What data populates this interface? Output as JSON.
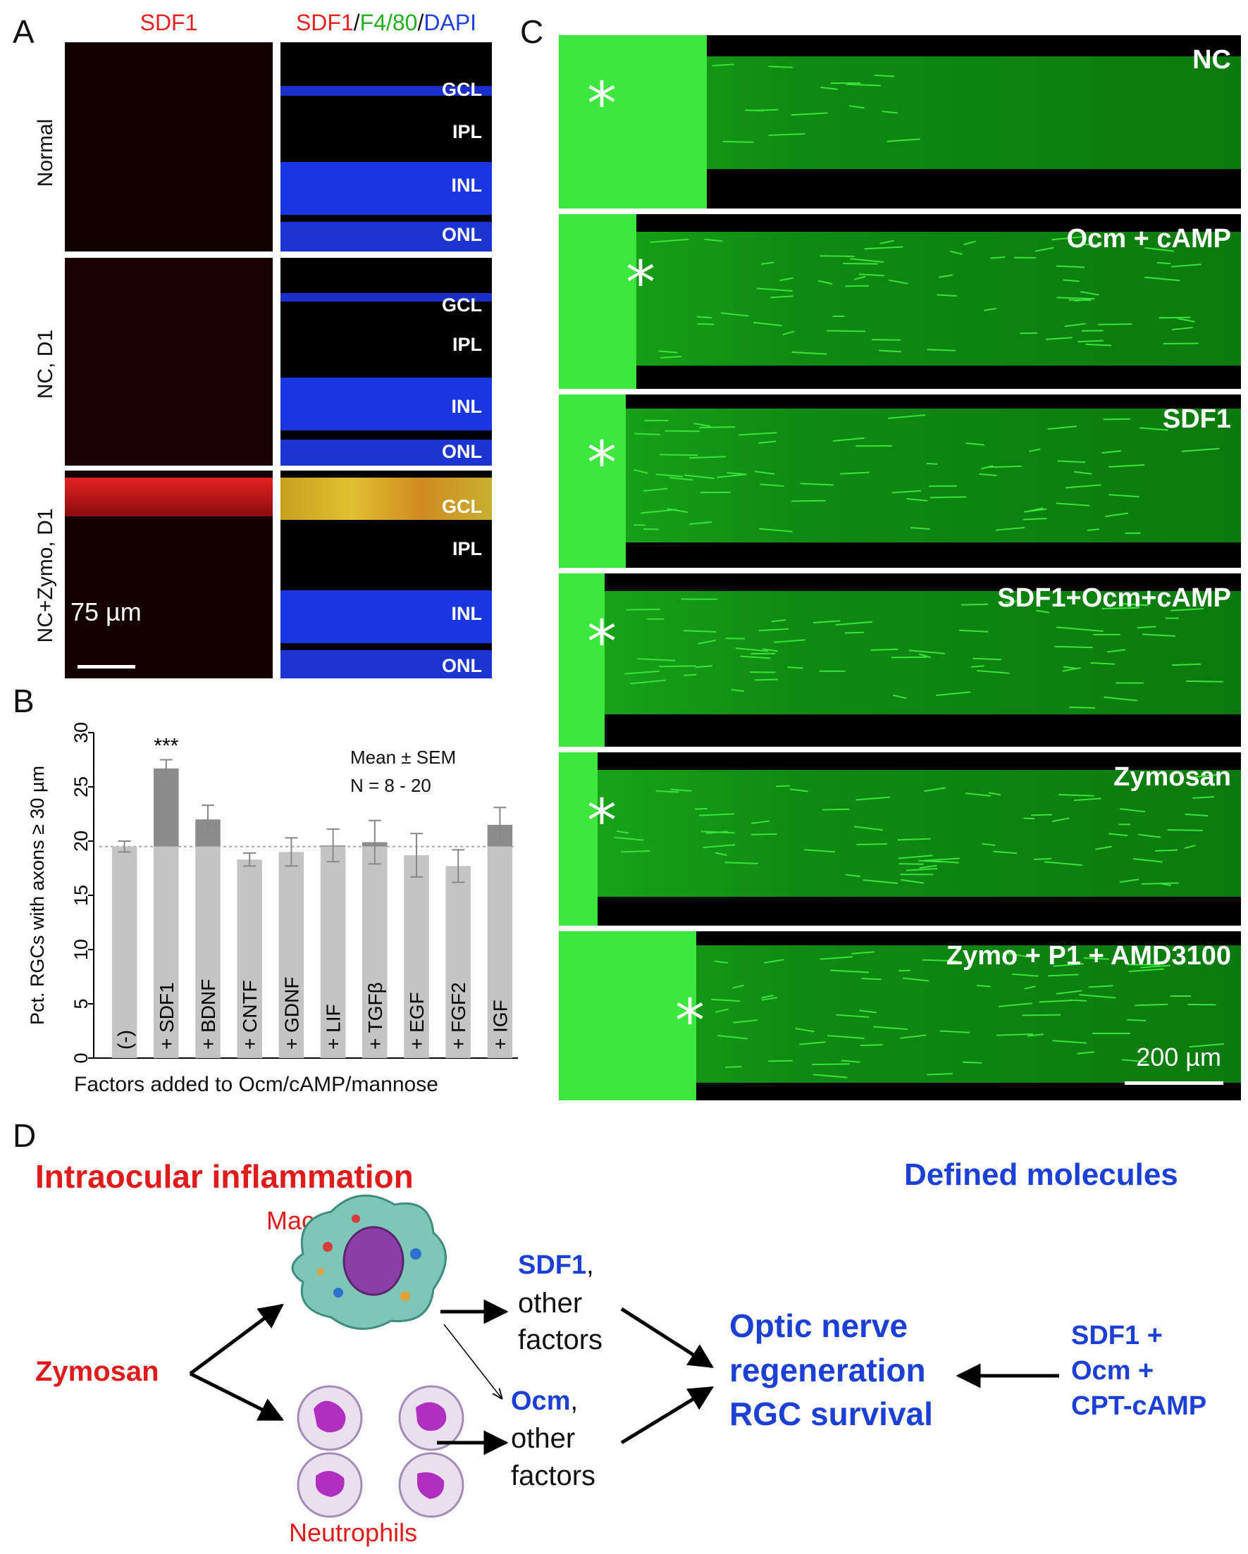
{
  "panel_labels": {
    "a": "A",
    "b": "B",
    "c": "C",
    "d": "D"
  },
  "panel_a": {
    "col1_title": "SDF1",
    "col2_title": {
      "sdf1": "SDF1",
      "sep1": "/",
      "f480": "F4/80",
      "sep2": "/",
      "dapi": "DAPI"
    },
    "rows": [
      "Normal",
      "NC, D1",
      "NC+Zymo, D1"
    ],
    "layers": {
      "gcl": "GCL",
      "ipl": "IPL",
      "inl": "INL",
      "onl": "ONL"
    },
    "scale_bar": "75 µm",
    "colors": {
      "sdf1": "#e52222",
      "f480": "#22b022",
      "dapi": "#1f3fe0"
    }
  },
  "panel_b": {
    "legend_line1": "Mean ± SEM",
    "legend_line2": "N = 8 - 20",
    "significance": "***"
  },
  "chart_data": {
    "type": "bar",
    "categories": [
      "(-)",
      "+ SDF1",
      "+ BDNF",
      "+ CNTF",
      "+ GDNF",
      "+ LIF",
      "+ TGFβ",
      "+ EGF",
      "+ FGF2",
      "+ IGF"
    ],
    "values": [
      19.5,
      26.7,
      22.0,
      18.3,
      19.0,
      19.6,
      19.9,
      18.7,
      17.7,
      21.5
    ],
    "errors": [
      0.5,
      0.8,
      1.3,
      0.6,
      1.3,
      1.5,
      2.0,
      2.0,
      1.5,
      1.6
    ],
    "baseline": 19.5,
    "xlabel": "Factors added to Ocm/cAMP/mannose",
    "ylabel": "Pct. RGCs with axons ≥ 30 µm",
    "ylim": [
      0,
      30
    ],
    "yticks": [
      0,
      5,
      10,
      15,
      20,
      25,
      30
    ],
    "grid": false,
    "colors": {
      "bar": "#c4c4c4",
      "above_baseline": "#8c8c8c"
    }
  },
  "panel_c": {
    "conditions": [
      "NC",
      "Ocm + cAMP",
      "SDF1",
      "SDF1+Ocm+cAMP",
      "Zymosan",
      "Zymo + P1 + AMD3100"
    ],
    "asterisk": "*",
    "scale_bar": "200 µm",
    "fiber_color": "#39e339"
  },
  "panel_d": {
    "left_title": "Intraocular inflammation",
    "right_title": "Defined molecules",
    "macrophages": "Macrophages",
    "neutrophils": "Neutrophils",
    "zymosan": "Zymosan",
    "sdf1_bold": "SDF1",
    "sdf1_rest": ",",
    "other": "other",
    "factors": "factors",
    "ocm_bold": "Ocm",
    "ocm_rest": ",",
    "center_line1": "Optic nerve",
    "center_line2": "regeneration",
    "center_line3": "RGC survival",
    "right_line1": "SDF1 +",
    "right_line2": "Ocm  +",
    "right_line3": "CPT-cAMP",
    "colors": {
      "red": "#e01b1b",
      "blue": "#1c3fd6"
    }
  }
}
